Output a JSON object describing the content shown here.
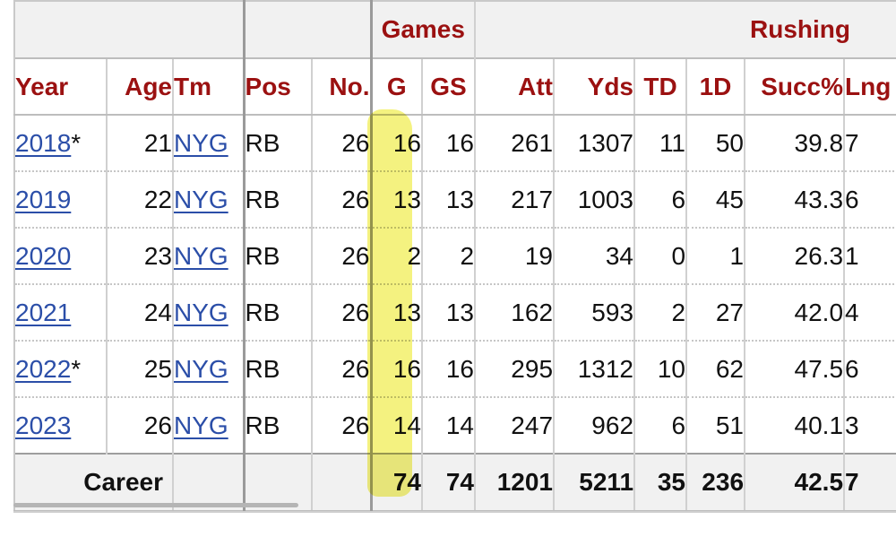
{
  "groups": {
    "games": "Games",
    "rushing": "Rushing"
  },
  "headers": {
    "year": "Year",
    "age": "Age",
    "tm": "Tm",
    "pos": "Pos",
    "no": "No.",
    "g": "G",
    "gs": "GS",
    "att": "Att",
    "yds": "Yds",
    "td": "TD",
    "first_downs": "1D",
    "succ": "Succ%",
    "lng": "Lng"
  },
  "rows": [
    {
      "year": "2018",
      "mark": "*",
      "age": "21",
      "tm": "NYG",
      "pos": "RB",
      "no": "26",
      "g": "16",
      "gs": "16",
      "att": "261",
      "yds": "1307",
      "td": "11",
      "first_downs": "50",
      "succ": "39.8",
      "lng": "7"
    },
    {
      "year": "2019",
      "mark": "",
      "age": "22",
      "tm": "NYG",
      "pos": "RB",
      "no": "26",
      "g": "13",
      "gs": "13",
      "att": "217",
      "yds": "1003",
      "td": "6",
      "first_downs": "45",
      "succ": "43.3",
      "lng": "6"
    },
    {
      "year": "2020",
      "mark": "",
      "age": "23",
      "tm": "NYG",
      "pos": "RB",
      "no": "26",
      "g": "2",
      "gs": "2",
      "att": "19",
      "yds": "34",
      "td": "0",
      "first_downs": "1",
      "succ": "26.3",
      "lng": "1"
    },
    {
      "year": "2021",
      "mark": "",
      "age": "24",
      "tm": "NYG",
      "pos": "RB",
      "no": "26",
      "g": "13",
      "gs": "13",
      "att": "162",
      "yds": "593",
      "td": "2",
      "first_downs": "27",
      "succ": "42.0",
      "lng": "4"
    },
    {
      "year": "2022",
      "mark": "*",
      "age": "25",
      "tm": "NYG",
      "pos": "RB",
      "no": "26",
      "g": "16",
      "gs": "16",
      "att": "295",
      "yds": "1312",
      "td": "10",
      "first_downs": "62",
      "succ": "47.5",
      "lng": "6"
    },
    {
      "year": "2023",
      "mark": "",
      "age": "26",
      "tm": "NYG",
      "pos": "RB",
      "no": "26",
      "g": "14",
      "gs": "14",
      "att": "247",
      "yds": "962",
      "td": "6",
      "first_downs": "51",
      "succ": "40.1",
      "lng": "3"
    }
  ],
  "career": {
    "label": "Career",
    "g": "74",
    "gs": "74",
    "att": "1201",
    "yds": "5211",
    "td": "35",
    "first_downs": "236",
    "succ": "42.5",
    "lng": "7"
  },
  "highlight_color": "#f3f06a",
  "header_color": "#9b1111",
  "link_color": "#2b4ea8"
}
